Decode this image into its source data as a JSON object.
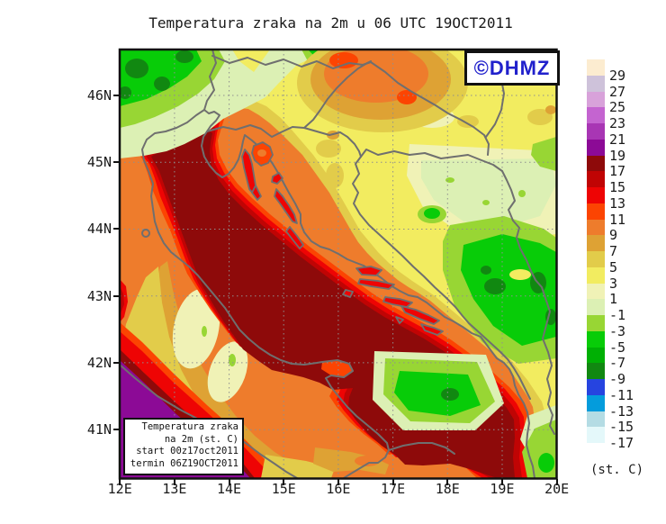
{
  "title": "Temperatura zraka na 2m u 06 UTC 19OCT2011",
  "watermark": {
    "label": "©DHMZ",
    "color": "#2121cc"
  },
  "info_box": {
    "line1": "Temperatura zraka",
    "line2": "na 2m (st. C)",
    "line3": "start 00z17oct2011",
    "line4": "termin 06Z19OCT2011"
  },
  "axes": {
    "lat_labels": [
      "46N",
      "45N",
      "44N",
      "43N",
      "42N",
      "41N"
    ],
    "lon_labels": [
      "12E",
      "13E",
      "14E",
      "15E",
      "16E",
      "17E",
      "18E",
      "19E",
      "20E"
    ]
  },
  "colorbar": {
    "unit": "(st. C)",
    "labels": [
      "29",
      "27",
      "25",
      "23",
      "21",
      "19",
      "17",
      "15",
      "13",
      "11",
      "9",
      "7",
      "5",
      "3",
      "1",
      "-1",
      "-3",
      "-5",
      "-7",
      "-9",
      "-11",
      "-13",
      "-15",
      "-17"
    ],
    "bands": [
      "#fcecd0",
      "#cec2da",
      "#d8a2da",
      "#c464d0",
      "#a836b4",
      "#8c0a96",
      "#8e0a0a",
      "#c00404",
      "#ee0404",
      "#fc4402",
      "#ee7c2c",
      "#dea234",
      "#e2cc4a",
      "#f2ec60",
      "#f0f2b6",
      "#dcf0b4",
      "#98d634",
      "#08cc08",
      "#00b004",
      "#118811",
      "#2644e0",
      "#049cdc",
      "#b4dce4",
      "#e4f8fa",
      "#ffffff"
    ]
  },
  "map": {
    "description": "Air temperature at 2 m over Croatia and the Adriatic, filled contours",
    "sea_core_color": "#8e0a0a",
    "coast_color": "#6f6f6f",
    "grid_color": "#8f8f8f",
    "frame_color": "#111111"
  }
}
